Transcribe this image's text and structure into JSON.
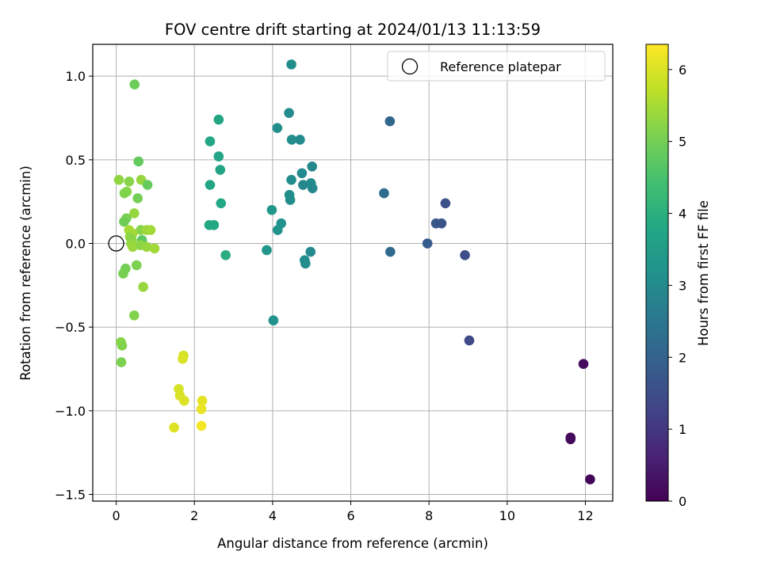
{
  "chart_data": {
    "type": "scatter",
    "title": "FOV centre drift starting at 2024/01/13 11:13:59",
    "xlabel": "Angular distance from reference (arcmin)",
    "ylabel": "Rotation from reference (arcmin)",
    "xlim": [
      -0.6,
      12.7
    ],
    "ylim": [
      -1.54,
      1.19
    ],
    "xticks": [
      0,
      2,
      4,
      6,
      8,
      10,
      12
    ],
    "yticks": [
      -1.5,
      -1.0,
      -0.5,
      0.0,
      0.5,
      1.0
    ],
    "xtick_labels": [
      "0",
      "2",
      "4",
      "6",
      "8",
      "10",
      "12"
    ],
    "ytick_labels": [
      "−1.5",
      "−1.0",
      "−0.5",
      "0.0",
      "0.5",
      "1.0"
    ],
    "grid": true,
    "legend": {
      "position": "upper right",
      "entries": [
        "Reference platepar"
      ]
    },
    "reference_point": {
      "x": 0.0,
      "y": 0.0,
      "label": "Reference platepar"
    },
    "colorbar": {
      "label": "Hours from first FF file",
      "colormap": "viridis",
      "range": [
        0,
        6.35
      ],
      "ticks": [
        0,
        1,
        2,
        3,
        4,
        5,
        6
      ],
      "tick_labels": [
        "0",
        "1",
        "2",
        "3",
        "4",
        "5",
        "6"
      ]
    },
    "points": [
      {
        "x": 12.12,
        "y": -1.41,
        "c": 0.05
      },
      {
        "x": 11.62,
        "y": -1.16,
        "c": 0.15
      },
      {
        "x": 11.62,
        "y": -1.17,
        "c": 0.18
      },
      {
        "x": 11.95,
        "y": -0.72,
        "c": 0.2
      },
      {
        "x": 9.03,
        "y": -0.58,
        "c": 1.4
      },
      {
        "x": 8.92,
        "y": -0.07,
        "c": 1.5
      },
      {
        "x": 8.42,
        "y": 0.24,
        "c": 1.55
      },
      {
        "x": 8.32,
        "y": 0.12,
        "c": 1.65
      },
      {
        "x": 8.18,
        "y": 0.12,
        "c": 1.7
      },
      {
        "x": 7.96,
        "y": 0.0,
        "c": 1.8
      },
      {
        "x": 7.0,
        "y": 0.73,
        "c": 2.1
      },
      {
        "x": 6.85,
        "y": 0.3,
        "c": 2.25
      },
      {
        "x": 7.01,
        "y": -0.05,
        "c": 2.2
      },
      {
        "x": 4.48,
        "y": 1.07,
        "c": 3.1
      },
      {
        "x": 4.42,
        "y": 0.78,
        "c": 3.0
      },
      {
        "x": 4.12,
        "y": 0.69,
        "c": 3.1
      },
      {
        "x": 4.49,
        "y": 0.62,
        "c": 3.05
      },
      {
        "x": 4.7,
        "y": 0.62,
        "c": 3.0
      },
      {
        "x": 5.01,
        "y": 0.46,
        "c": 2.95
      },
      {
        "x": 4.75,
        "y": 0.42,
        "c": 3.0
      },
      {
        "x": 4.48,
        "y": 0.38,
        "c": 3.05
      },
      {
        "x": 4.98,
        "y": 0.36,
        "c": 3.0
      },
      {
        "x": 4.78,
        "y": 0.35,
        "c": 2.95
      },
      {
        "x": 5.02,
        "y": 0.33,
        "c": 2.95
      },
      {
        "x": 4.43,
        "y": 0.29,
        "c": 3.1
      },
      {
        "x": 4.45,
        "y": 0.26,
        "c": 3.1
      },
      {
        "x": 3.98,
        "y": 0.2,
        "c": 3.3
      },
      {
        "x": 4.22,
        "y": 0.12,
        "c": 3.2
      },
      {
        "x": 4.13,
        "y": 0.08,
        "c": 3.25
      },
      {
        "x": 3.85,
        "y": -0.04,
        "c": 3.3
      },
      {
        "x": 4.97,
        "y": -0.05,
        "c": 3.0
      },
      {
        "x": 4.82,
        "y": -0.1,
        "c": 3.05
      },
      {
        "x": 4.84,
        "y": -0.12,
        "c": 3.05
      },
      {
        "x": 4.02,
        "y": -0.46,
        "c": 3.2
      },
      {
        "x": 2.62,
        "y": 0.74,
        "c": 3.7
      },
      {
        "x": 2.4,
        "y": 0.61,
        "c": 3.75
      },
      {
        "x": 2.62,
        "y": 0.52,
        "c": 3.7
      },
      {
        "x": 2.66,
        "y": 0.44,
        "c": 3.7
      },
      {
        "x": 2.4,
        "y": 0.35,
        "c": 3.75
      },
      {
        "x": 2.68,
        "y": 0.24,
        "c": 3.8
      },
      {
        "x": 2.38,
        "y": 0.11,
        "c": 3.85
      },
      {
        "x": 2.5,
        "y": 0.11,
        "c": 3.8
      },
      {
        "x": 2.8,
        "y": -0.07,
        "c": 3.95
      },
      {
        "x": 0.47,
        "y": 0.95,
        "c": 4.9
      },
      {
        "x": 0.57,
        "y": 0.49,
        "c": 4.8
      },
      {
        "x": 0.07,
        "y": 0.38,
        "c": 5.3
      },
      {
        "x": 0.33,
        "y": 0.37,
        "c": 5.2
      },
      {
        "x": 0.64,
        "y": 0.38,
        "c": 5.35
      },
      {
        "x": 0.8,
        "y": 0.35,
        "c": 4.85
      },
      {
        "x": 0.27,
        "y": 0.31,
        "c": 5.2
      },
      {
        "x": 0.21,
        "y": 0.3,
        "c": 5.15
      },
      {
        "x": 0.55,
        "y": 0.27,
        "c": 5.0
      },
      {
        "x": 0.46,
        "y": 0.18,
        "c": 5.35
      },
      {
        "x": 0.26,
        "y": 0.15,
        "c": 5.05
      },
      {
        "x": 0.2,
        "y": 0.13,
        "c": 4.95
      },
      {
        "x": 0.63,
        "y": 0.08,
        "c": 5.2
      },
      {
        "x": 0.78,
        "y": 0.08,
        "c": 5.4
      },
      {
        "x": 0.88,
        "y": 0.08,
        "c": 5.45
      },
      {
        "x": 0.33,
        "y": 0.08,
        "c": 5.5
      },
      {
        "x": 0.42,
        "y": 0.06,
        "c": 5.45
      },
      {
        "x": 0.35,
        "y": 0.04,
        "c": 5.3
      },
      {
        "x": 0.4,
        "y": 0.02,
        "c": 5.2
      },
      {
        "x": 0.66,
        "y": 0.02,
        "c": 4.75
      },
      {
        "x": 0.38,
        "y": -0.0,
        "c": 5.3
      },
      {
        "x": 0.42,
        "y": -0.02,
        "c": 5.4
      },
      {
        "x": 0.62,
        "y": -0.01,
        "c": 5.25
      },
      {
        "x": 0.78,
        "y": -0.02,
        "c": 5.35
      },
      {
        "x": 0.98,
        "y": -0.03,
        "c": 5.45
      },
      {
        "x": 0.52,
        "y": -0.13,
        "c": 5.1
      },
      {
        "x": 0.24,
        "y": -0.15,
        "c": 5.0
      },
      {
        "x": 0.18,
        "y": -0.18,
        "c": 5.05
      },
      {
        "x": 0.69,
        "y": -0.26,
        "c": 5.35
      },
      {
        "x": 0.46,
        "y": -0.43,
        "c": 5.15
      },
      {
        "x": 0.12,
        "y": -0.59,
        "c": 5.2
      },
      {
        "x": 0.15,
        "y": -0.61,
        "c": 5.15
      },
      {
        "x": 0.13,
        "y": -0.71,
        "c": 5.1
      },
      {
        "x": 1.72,
        "y": -0.67,
        "c": 5.95
      },
      {
        "x": 1.7,
        "y": -0.69,
        "c": 6.0
      },
      {
        "x": 1.6,
        "y": -0.87,
        "c": 5.95
      },
      {
        "x": 1.63,
        "y": -0.91,
        "c": 6.0
      },
      {
        "x": 1.74,
        "y": -0.94,
        "c": 6.0
      },
      {
        "x": 2.2,
        "y": -0.94,
        "c": 6.1
      },
      {
        "x": 2.18,
        "y": -0.99,
        "c": 6.15
      },
      {
        "x": 1.48,
        "y": -1.1,
        "c": 6.05
      },
      {
        "x": 2.18,
        "y": -1.09,
        "c": 6.25
      }
    ]
  }
}
